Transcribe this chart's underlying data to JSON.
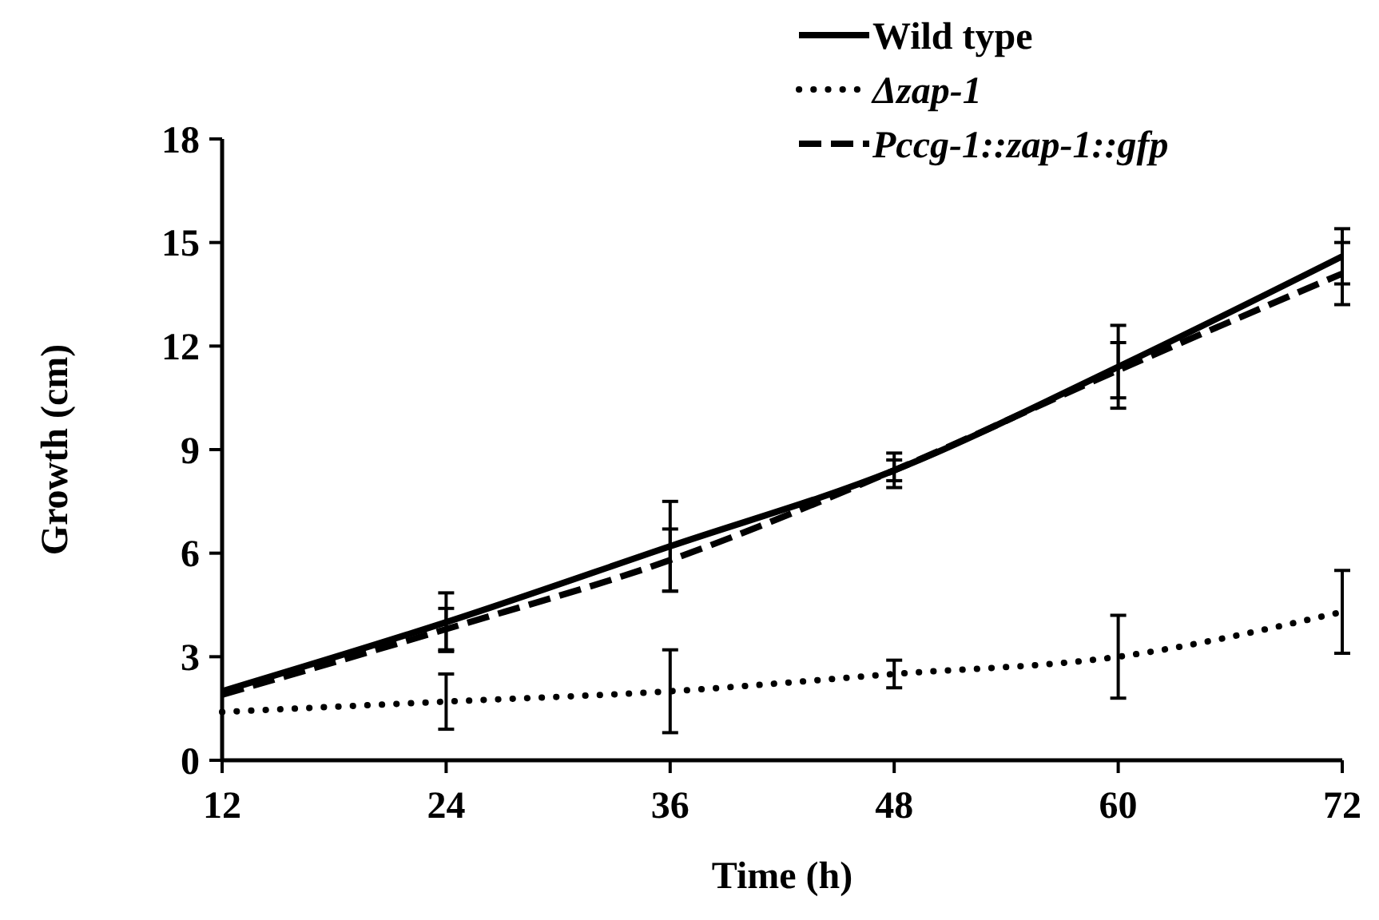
{
  "chart_data": {
    "type": "line",
    "xlabel": "Time (h)",
    "ylabel": "Growth (cm)",
    "x": [
      12,
      24,
      36,
      48,
      60,
      72
    ],
    "xlim": [
      12,
      72
    ],
    "xticks": [
      12,
      24,
      36,
      48,
      60,
      72
    ],
    "ylim": [
      0,
      18
    ],
    "yticks": [
      0,
      3,
      6,
      9,
      12,
      15,
      18
    ],
    "grid": false,
    "legend": "top right",
    "series": [
      {
        "name": "Wild type",
        "color": "#000000",
        "line_style": "solid",
        "values": [
          2.0,
          4.0,
          6.2,
          8.4,
          11.4,
          14.6
        ],
        "errors": [
          null,
          0.85,
          1.3,
          0.5,
          1.2,
          0.8
        ]
      },
      {
        "name": "Δzap-1",
        "color": "#000000",
        "line_style": "dotted",
        "values": [
          1.4,
          1.7,
          2.0,
          2.5,
          3.0,
          4.3
        ],
        "errors": [
          null,
          0.8,
          1.2,
          0.4,
          1.2,
          1.2
        ]
      },
      {
        "name": "Pccg-1::zap-1::gfp",
        "color": "#000000",
        "line_style": "dashed",
        "values": [
          1.9,
          3.8,
          5.8,
          8.4,
          11.3,
          14.1
        ],
        "errors": [
          null,
          0.6,
          0.9,
          0.3,
          0.8,
          0.9
        ]
      }
    ]
  }
}
